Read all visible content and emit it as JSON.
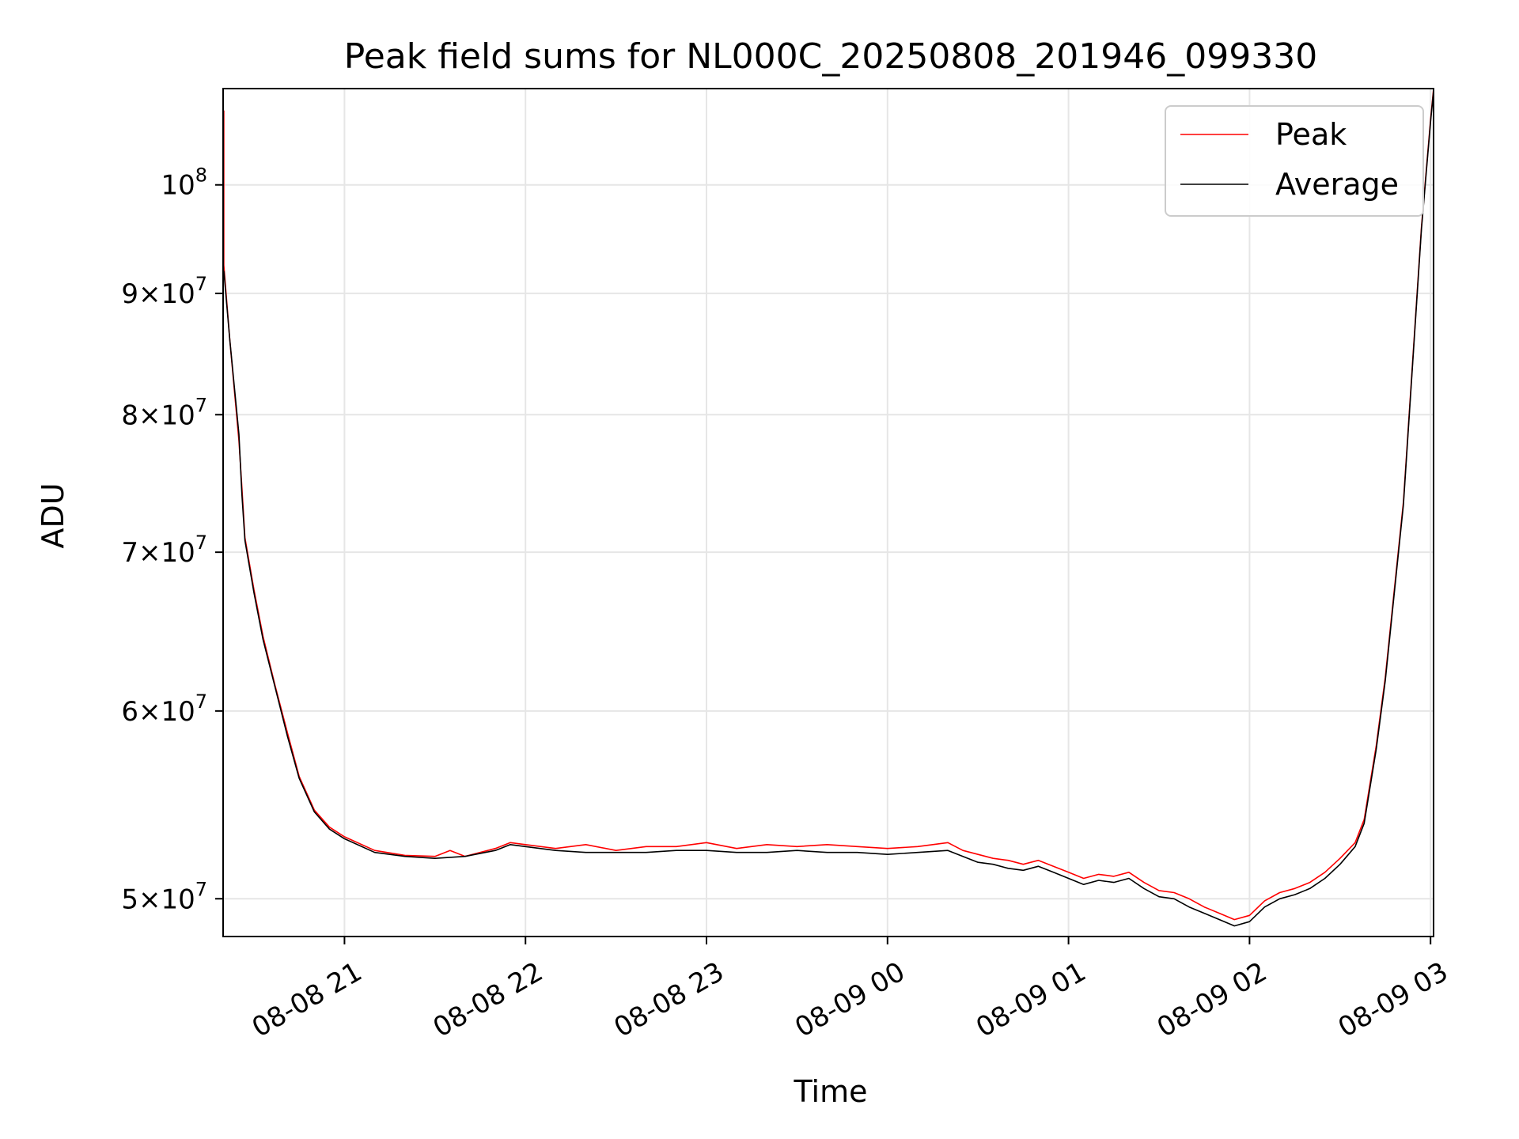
{
  "chart_data": {
    "type": "line",
    "title": "Peak field sums for NL000C_20250808_201946_099330",
    "xlabel": "Time",
    "ylabel": "ADU",
    "y_scale": "log",
    "grid": true,
    "legend_position": "top-right",
    "xlim": [
      "2025-08-08 20:19:46",
      "2025-08-09 03:01:00"
    ],
    "ylim": [
      48200000,
      109800000
    ],
    "x_ticks": [
      {
        "value": "2025-08-08 21:00",
        "label": "08-08 21"
      },
      {
        "value": "2025-08-08 22:00",
        "label": "08-08 22"
      },
      {
        "value": "2025-08-08 23:00",
        "label": "08-08 23"
      },
      {
        "value": "2025-08-09 00:00",
        "label": "08-09 00"
      },
      {
        "value": "2025-08-09 01:00",
        "label": "08-09 01"
      },
      {
        "value": "2025-08-09 02:00",
        "label": "08-09 02"
      },
      {
        "value": "2025-08-09 03:00",
        "label": "08-09 03"
      }
    ],
    "y_ticks": [
      {
        "value": 50000000,
        "mant": "5",
        "exp": "7"
      },
      {
        "value": 60000000,
        "mant": "6",
        "exp": "7"
      },
      {
        "value": 70000000,
        "mant": "7",
        "exp": "7"
      },
      {
        "value": 80000000,
        "mant": "8",
        "exp": "7"
      },
      {
        "value": 90000000,
        "mant": "9",
        "exp": "7"
      },
      {
        "value": 100000000,
        "mant": "",
        "exp": "8"
      }
    ],
    "series": [
      {
        "name": "Peak",
        "color": "#ff0000",
        "points": [
          [
            "2025-08-08 20:20",
            107500000
          ],
          [
            "2025-08-08 20:20",
            92500000
          ],
          [
            "2025-08-08 20:22",
            86000000
          ],
          [
            "2025-08-08 20:25",
            78000000
          ],
          [
            "2025-08-08 20:26",
            74500000
          ],
          [
            "2025-08-08 20:27",
            71000000
          ],
          [
            "2025-08-08 20:30",
            67500000
          ],
          [
            "2025-08-08 20:33",
            64500000
          ],
          [
            "2025-08-08 20:37",
            61500000
          ],
          [
            "2025-08-08 20:41",
            58800000
          ],
          [
            "2025-08-08 20:45",
            56300000
          ],
          [
            "2025-08-08 20:50",
            54500000
          ],
          [
            "2025-08-08 20:55",
            53600000
          ],
          [
            "2025-08-08 21:00",
            53100000
          ],
          [
            "2025-08-08 21:10",
            52400000
          ],
          [
            "2025-08-08 21:20",
            52150000
          ],
          [
            "2025-08-08 21:30",
            52100000
          ],
          [
            "2025-08-08 21:35",
            52400000
          ],
          [
            "2025-08-08 21:40",
            52100000
          ],
          [
            "2025-08-08 21:45",
            52300000
          ],
          [
            "2025-08-08 21:50",
            52500000
          ],
          [
            "2025-08-08 21:55",
            52800000
          ],
          [
            "2025-08-08 22:00",
            52700000
          ],
          [
            "2025-08-08 22:10",
            52500000
          ],
          [
            "2025-08-08 22:20",
            52700000
          ],
          [
            "2025-08-08 22:30",
            52400000
          ],
          [
            "2025-08-08 22:40",
            52600000
          ],
          [
            "2025-08-08 22:50",
            52600000
          ],
          [
            "2025-08-08 23:00",
            52800000
          ],
          [
            "2025-08-08 23:10",
            52500000
          ],
          [
            "2025-08-08 23:20",
            52700000
          ],
          [
            "2025-08-08 23:30",
            52600000
          ],
          [
            "2025-08-08 23:40",
            52700000
          ],
          [
            "2025-08-08 23:50",
            52600000
          ],
          [
            "2025-08-09 00:00",
            52500000
          ],
          [
            "2025-08-09 00:10",
            52600000
          ],
          [
            "2025-08-09 00:20",
            52800000
          ],
          [
            "2025-08-09 00:25",
            52400000
          ],
          [
            "2025-08-09 00:30",
            52200000
          ],
          [
            "2025-08-09 00:35",
            52000000
          ],
          [
            "2025-08-09 00:40",
            51900000
          ],
          [
            "2025-08-09 00:45",
            51700000
          ],
          [
            "2025-08-09 00:50",
            51900000
          ],
          [
            "2025-08-09 00:55",
            51600000
          ],
          [
            "2025-08-09 01:00",
            51300000
          ],
          [
            "2025-08-09 01:05",
            51000000
          ],
          [
            "2025-08-09 01:10",
            51200000
          ],
          [
            "2025-08-09 01:15",
            51100000
          ],
          [
            "2025-08-09 01:20",
            51300000
          ],
          [
            "2025-08-09 01:25",
            50800000
          ],
          [
            "2025-08-09 01:30",
            50400000
          ],
          [
            "2025-08-09 01:35",
            50300000
          ],
          [
            "2025-08-09 01:40",
            50000000
          ],
          [
            "2025-08-09 01:45",
            49600000
          ],
          [
            "2025-08-09 01:50",
            49300000
          ],
          [
            "2025-08-09 01:55",
            49000000
          ],
          [
            "2025-08-09 02:00",
            49200000
          ],
          [
            "2025-08-09 02:05",
            49900000
          ],
          [
            "2025-08-09 02:10",
            50300000
          ],
          [
            "2025-08-09 02:15",
            50500000
          ],
          [
            "2025-08-09 02:20",
            50800000
          ],
          [
            "2025-08-09 02:25",
            51300000
          ],
          [
            "2025-08-09 02:30",
            52000000
          ],
          [
            "2025-08-09 02:35",
            52800000
          ],
          [
            "2025-08-09 02:38",
            54000000
          ],
          [
            "2025-08-09 02:42",
            58000000
          ],
          [
            "2025-08-09 02:45",
            62000000
          ],
          [
            "2025-08-09 02:48",
            67500000
          ],
          [
            "2025-08-09 02:51",
            73500000
          ],
          [
            "2025-08-09 02:54",
            84000000
          ],
          [
            "2025-08-09 02:57",
            96000000
          ],
          [
            "2025-08-09 03:00",
            106500000
          ],
          [
            "2025-08-09 03:01",
            109800000
          ]
        ]
      },
      {
        "name": "Average",
        "color": "#000000",
        "points": [
          [
            "2025-08-08 20:20",
            92000000
          ],
          [
            "2025-08-08 20:22",
            86000000
          ],
          [
            "2025-08-08 20:25",
            78500000
          ],
          [
            "2025-08-08 20:26",
            74000000
          ],
          [
            "2025-08-08 20:27",
            70800000
          ],
          [
            "2025-08-08 20:30",
            67300000
          ],
          [
            "2025-08-08 20:33",
            64300000
          ],
          [
            "2025-08-08 20:37",
            61400000
          ],
          [
            "2025-08-08 20:41",
            58600000
          ],
          [
            "2025-08-08 20:45",
            56200000
          ],
          [
            "2025-08-08 20:50",
            54400000
          ],
          [
            "2025-08-08 20:55",
            53500000
          ],
          [
            "2025-08-08 21:00",
            53000000
          ],
          [
            "2025-08-08 21:10",
            52300000
          ],
          [
            "2025-08-08 21:20",
            52100000
          ],
          [
            "2025-08-08 21:30",
            52000000
          ],
          [
            "2025-08-08 21:40",
            52100000
          ],
          [
            "2025-08-08 21:50",
            52400000
          ],
          [
            "2025-08-08 21:55",
            52700000
          ],
          [
            "2025-08-08 22:00",
            52600000
          ],
          [
            "2025-08-08 22:10",
            52400000
          ],
          [
            "2025-08-08 22:20",
            52300000
          ],
          [
            "2025-08-08 22:30",
            52300000
          ],
          [
            "2025-08-08 22:40",
            52300000
          ],
          [
            "2025-08-08 22:50",
            52400000
          ],
          [
            "2025-08-08 23:00",
            52400000
          ],
          [
            "2025-08-08 23:10",
            52300000
          ],
          [
            "2025-08-08 23:20",
            52300000
          ],
          [
            "2025-08-08 23:30",
            52400000
          ],
          [
            "2025-08-08 23:40",
            52300000
          ],
          [
            "2025-08-08 23:50",
            52300000
          ],
          [
            "2025-08-09 00:00",
            52200000
          ],
          [
            "2025-08-09 00:10",
            52300000
          ],
          [
            "2025-08-09 00:20",
            52400000
          ],
          [
            "2025-08-09 00:25",
            52100000
          ],
          [
            "2025-08-09 00:30",
            51800000
          ],
          [
            "2025-08-09 00:35",
            51700000
          ],
          [
            "2025-08-09 00:40",
            51500000
          ],
          [
            "2025-08-09 00:45",
            51400000
          ],
          [
            "2025-08-09 00:50",
            51600000
          ],
          [
            "2025-08-09 00:55",
            51300000
          ],
          [
            "2025-08-09 01:00",
            51000000
          ],
          [
            "2025-08-09 01:05",
            50700000
          ],
          [
            "2025-08-09 01:10",
            50900000
          ],
          [
            "2025-08-09 01:15",
            50800000
          ],
          [
            "2025-08-09 01:20",
            51000000
          ],
          [
            "2025-08-09 01:25",
            50500000
          ],
          [
            "2025-08-09 01:30",
            50100000
          ],
          [
            "2025-08-09 01:35",
            50000000
          ],
          [
            "2025-08-09 01:40",
            49600000
          ],
          [
            "2025-08-09 01:45",
            49300000
          ],
          [
            "2025-08-09 01:50",
            49000000
          ],
          [
            "2025-08-09 01:55",
            48700000
          ],
          [
            "2025-08-09 02:00",
            48900000
          ],
          [
            "2025-08-09 02:05",
            49600000
          ],
          [
            "2025-08-09 02:10",
            50000000
          ],
          [
            "2025-08-09 02:15",
            50200000
          ],
          [
            "2025-08-09 02:20",
            50500000
          ],
          [
            "2025-08-09 02:25",
            51000000
          ],
          [
            "2025-08-09 02:30",
            51700000
          ],
          [
            "2025-08-09 02:35",
            52600000
          ],
          [
            "2025-08-09 02:38",
            53800000
          ],
          [
            "2025-08-09 02:42",
            57800000
          ],
          [
            "2025-08-09 02:45",
            61800000
          ],
          [
            "2025-08-09 02:48",
            67300000
          ],
          [
            "2025-08-09 02:51",
            73300000
          ],
          [
            "2025-08-09 02:54",
            83800000
          ],
          [
            "2025-08-09 02:57",
            95800000
          ],
          [
            "2025-08-09 03:00",
            106300000
          ],
          [
            "2025-08-09 03:01",
            109600000
          ]
        ]
      }
    ]
  }
}
